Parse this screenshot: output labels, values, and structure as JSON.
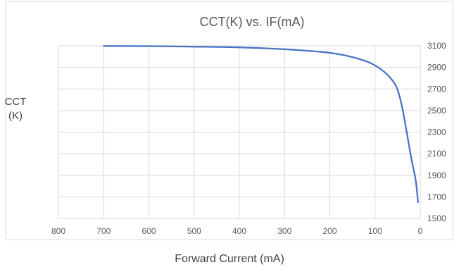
{
  "chart_data": {
    "type": "line",
    "title": "CCT(K) vs. IF(mA)",
    "xlabel": "Forward Current (mA)",
    "ylabel_lines": [
      "CCT",
      "(K)"
    ],
    "xlim": [
      800,
      0
    ],
    "x_reversed": true,
    "ylim": [
      1500,
      3100
    ],
    "y_axis_side": "right",
    "x_ticks": [
      "800",
      "700",
      "600",
      "500",
      "400",
      "300",
      "200",
      "100",
      "0"
    ],
    "y_ticks": [
      "1500",
      "1700",
      "1900",
      "2100",
      "2300",
      "2500",
      "2700",
      "2900",
      "3100"
    ],
    "grid": true,
    "series": [
      {
        "color": "#4472c4",
        "x": [
          700,
          600,
          500,
          400,
          300,
          200,
          150,
          110,
          80,
          60,
          50,
          40,
          30,
          20,
          10,
          5
        ],
        "y": [
          3098,
          3097,
          3092,
          3085,
          3068,
          3035,
          2995,
          2940,
          2860,
          2770,
          2690,
          2530,
          2300,
          2060,
          1850,
          1650
        ]
      }
    ]
  }
}
